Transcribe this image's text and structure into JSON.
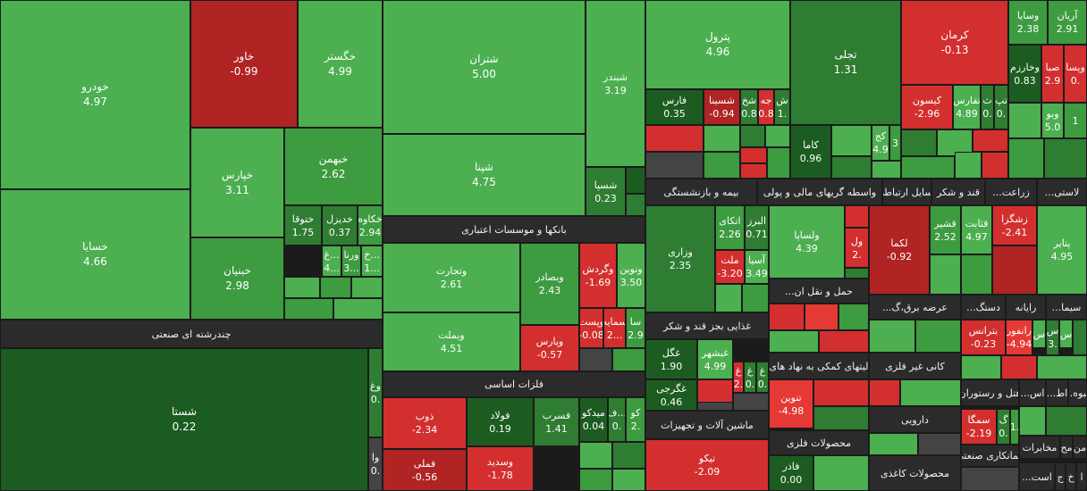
{
  "tiles": [
    {
      "name": "خودرو",
      "change": "4.97"
    },
    {
      "name": "خسایا",
      "change": "4.66"
    },
    {
      "name": "خاور",
      "change": "-0.99"
    },
    {
      "name": "خگستر",
      "change": "4.99"
    },
    {
      "name": "خپارس",
      "change": "3.11"
    },
    {
      "name": "خبهمن",
      "change": "2.62"
    },
    {
      "name": "ختوقا",
      "change": "1.75"
    },
    {
      "name": "خدیزل",
      "change": "0.37"
    },
    {
      "name": "خکاوه",
      "change": "2.94"
    },
    {
      "name": "خبنیان",
      "change": "2.98"
    },
    {
      "name": "غ...",
      "change": "4..."
    },
    {
      "name": "ورنا",
      "change": "3..."
    },
    {
      "name": "خ...",
      "change": "1..."
    },
    {
      "name": "شستا",
      "change": "0.22"
    },
    {
      "name": "وغ",
      "change": "0."
    },
    {
      "name": "وا",
      "change": "0."
    },
    {
      "name": "شتران",
      "change": "5.00"
    },
    {
      "name": "شبندر",
      "change": "3.19"
    },
    {
      "name": "شپنا",
      "change": "4.75"
    },
    {
      "name": "شسپا",
      "change": "0.23"
    },
    {
      "name": "وتجارت",
      "change": "2.61"
    },
    {
      "name": "وبملت",
      "change": "4.51"
    },
    {
      "name": "وبصادر",
      "change": "2.43"
    },
    {
      "name": "وپارس",
      "change": "-0.57"
    },
    {
      "name": "وگردش",
      "change": "-1.69"
    },
    {
      "name": "ونوین",
      "change": "3.50"
    },
    {
      "name": "وپست",
      "change": "-0.08"
    },
    {
      "name": "سمایه",
      "change": "2..."
    },
    {
      "name": "سا",
      "change": "2.9"
    },
    {
      "name": "ذوب",
      "change": "-2.34"
    },
    {
      "name": "فملی",
      "change": "-0.56"
    },
    {
      "name": "فولاد",
      "change": "0.19"
    },
    {
      "name": "فسرب",
      "change": "1.41"
    },
    {
      "name": "وسدید",
      "change": "-1.78"
    },
    {
      "name": "میدکو",
      "change": "0.04"
    },
    {
      "name": "ف...",
      "change": "0."
    },
    {
      "name": "کو",
      "change": "2."
    },
    {
      "name": "پترول",
      "change": "4.96"
    },
    {
      "name": "فارس",
      "change": "0.35"
    },
    {
      "name": "شسینا",
      "change": "-0.94"
    },
    {
      "name": "شخ",
      "change": "0.8"
    },
    {
      "name": "جه",
      "change": "0.8"
    },
    {
      "name": "ش",
      "change": "1."
    },
    {
      "name": "تجلی",
      "change": "1.31"
    },
    {
      "name": "کاما",
      "change": "0.96"
    },
    {
      "name": "کج",
      "change": "4.9"
    },
    {
      "change": "3"
    },
    {
      "name": "کرمان",
      "change": "-0.13"
    },
    {
      "name": "کیسون",
      "change": "-2.96"
    },
    {
      "name": "تفارس",
      "change": "4.89"
    },
    {
      "name": "ث",
      "change": "0."
    },
    {
      "name": "تپ",
      "change": "0."
    },
    {
      "name": "وسایا",
      "change": "2.38"
    },
    {
      "name": "آریان",
      "change": "2.91"
    },
    {
      "name": "وخارزم",
      "change": "0.83"
    },
    {
      "name": "صبا",
      "change": "2.9"
    },
    {
      "name": "وپسا",
      "change": "0."
    },
    {
      "name": "وبو",
      "change": "5.0"
    },
    {
      "change": "1"
    },
    {
      "name": "وزاری",
      "change": "2.35"
    },
    {
      "name": "اتکای",
      "change": "2.26"
    },
    {
      "name": "البرز",
      "change": "0.71"
    },
    {
      "name": "ملت",
      "change": "-3.20"
    },
    {
      "name": "آسیا",
      "change": "3.49"
    },
    {
      "name": "غگل",
      "change": "1.90"
    },
    {
      "name": "غبشهر",
      "change": "4.99"
    },
    {
      "name": "غ",
      "change": "2."
    },
    {
      "name": "غ",
      "change": "0."
    },
    {
      "name": "غ",
      "change": "0."
    },
    {
      "name": "غگرجی",
      "change": "0.46"
    },
    {
      "name": "تیکو",
      "change": "-2.09"
    },
    {
      "name": "ولساپا",
      "change": "4.39"
    },
    {
      "name": "ول",
      "change": "2."
    },
    {
      "name": "تنوین",
      "change": "-4.98"
    },
    {
      "name": "فاذر",
      "change": "0.00"
    },
    {
      "name": "لکما",
      "change": "-0.92"
    },
    {
      "name": "قشیر",
      "change": "2.52"
    },
    {
      "name": "قثابت",
      "change": "4.97"
    },
    {
      "name": "زشگزا",
      "change": "-2.41"
    },
    {
      "name": "پتایر",
      "change": "4.95"
    },
    {
      "name": "بترانس",
      "change": "-0.23"
    },
    {
      "name": "رانفور",
      "change": "-4.94"
    },
    {
      "name": "س"
    },
    {
      "name": "س",
      "change": "3."
    },
    {
      "name": "س"
    },
    {
      "name": "سمگا",
      "change": "-2.19"
    },
    {
      "name": "گ",
      "change": "0."
    },
    {
      "change": "1."
    }
  ],
  "sectors": [
    "چندرشته ای صنعتی",
    "بانکها و موسسات اعتباری",
    "فلزات اساسی",
    "بیمه و بازنشستگی",
    "واسطه گریهای مالی و پولی",
    "وسایل ارتباطی",
    "قند و شکر",
    "زراعت...",
    "لاستی...",
    "غذایی بجز قند و شکر",
    "ماشین آلات و تجهیزات",
    "حمل و نقل ان...",
    "فعالیتهای کمکی به نهاد های ...",
    "محصولات فلزی",
    "عرضه برق،گ...",
    "دستگ...",
    "رایانه",
    "سیما...",
    "کانی غیر فلزی",
    "هتل و رستوران",
    "اس...",
    "اط...",
    "انبوه...",
    "دارویی",
    "محصولات کاغذی",
    "پیمانکاری صنعتی",
    "مخابرات",
    "مح",
    "من",
    "است...",
    "ج",
    "خ",
    "ا"
  ]
}
